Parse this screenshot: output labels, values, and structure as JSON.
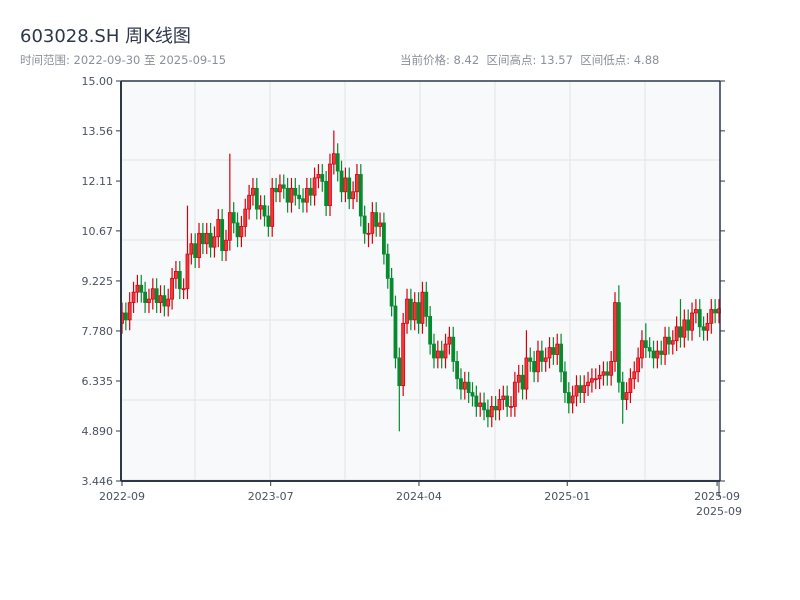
{
  "header": {
    "title": "603028.SH 周K线图",
    "range_label": "时间范围: 2022-09-30 至 2025-09-15",
    "stats_label": "当前价格: 8.42  区间高点: 13.57  区间低点: 4.88"
  },
  "chart_data": {
    "type": "candlestick",
    "start_date": "2022-09-30",
    "end_date": "2025-09-15",
    "current_price": 8.42,
    "range_high": 13.57,
    "range_low": 4.88,
    "ylim": [
      3.446,
      15.0
    ],
    "y_ticks": [
      "15.00",
      "13.56",
      "12.11",
      "10.67",
      "9.225",
      "7.780",
      "6.335",
      "4.890",
      "3.446"
    ],
    "x_ticks": [
      {
        "label": "2022-09",
        "week": 0
      },
      {
        "label": "2023-07",
        "week": 38.6
      },
      {
        "label": "2024-04",
        "week": 77.1
      },
      {
        "label": "2025-01",
        "week": 115.6
      },
      {
        "label": "2025-09",
        "week": 154.5
      },
      {
        "label": "2025-09",
        "week": 155
      }
    ],
    "grid": true,
    "colors": {
      "up": "#d7000f",
      "up_fill": "#f03a3a",
      "down": "#078a2e",
      "background": "#f7f9fb",
      "grid": "#e2e5ea",
      "axis": "#2d3748"
    },
    "open": [
      8.0,
      8.3,
      8.1,
      8.6,
      8.9,
      9.1,
      8.9,
      8.6,
      8.7,
      9.0,
      8.6,
      8.8,
      8.5,
      8.7,
      9.3,
      9.5,
      9.0,
      9.0,
      10.0,
      10.3,
      9.9,
      10.6,
      10.3,
      10.6,
      10.2,
      10.5,
      11.0,
      10.1,
      10.4,
      11.2,
      10.9,
      10.5,
      10.8,
      11.3,
      11.7,
      11.9,
      11.3,
      11.4,
      11.1,
      10.8,
      11.9,
      11.8,
      12.0,
      11.9,
      11.5,
      11.9,
      11.7,
      11.6,
      11.5,
      11.9,
      11.7,
      12.2,
      12.3,
      12.1,
      11.4,
      12.6,
      12.9,
      12.4,
      11.8,
      12.2,
      11.6,
      11.8,
      12.3,
      11.1,
      10.6,
      10.6,
      11.2,
      10.8,
      10.9,
      10.0,
      9.3,
      8.5,
      7.0,
      6.2,
      8.0,
      8.7,
      8.1,
      8.6,
      8.0,
      8.9,
      8.2,
      7.4,
      7.0,
      7.2,
      7.0,
      7.4,
      7.6,
      6.9,
      6.4,
      6.1,
      6.3,
      6.0,
      5.9,
      5.6,
      5.7,
      5.5,
      5.3,
      5.6,
      5.5,
      5.8,
      5.9,
      5.6,
      5.6,
      6.3,
      6.5,
      6.1,
      7.0,
      6.9,
      6.6,
      7.2,
      6.9,
      7.0,
      7.3,
      7.1,
      7.4,
      6.6,
      6.0,
      5.7,
      5.9,
      6.2,
      6.0,
      6.2,
      6.3,
      6.4,
      6.4,
      6.5,
      6.6,
      6.5,
      6.9,
      8.6,
      6.3,
      5.8,
      6.0,
      6.4,
      6.6,
      7.0,
      7.5,
      7.3,
      7.2,
      7.0,
      7.2,
      7.1,
      7.6,
      7.4,
      7.5,
      7.9,
      7.6,
      8.1,
      7.8,
      8.3,
      8.4,
      7.9,
      7.8,
      8.0,
      8.4,
      8.3
    ],
    "high": [
      8.6,
      8.6,
      8.9,
      9.2,
      9.4,
      9.4,
      9.2,
      9.0,
      9.3,
      9.3,
      9.1,
      9.1,
      9.0,
      9.6,
      9.8,
      9.8,
      9.3,
      11.4,
      10.6,
      10.6,
      10.9,
      10.9,
      10.9,
      10.9,
      10.8,
      11.3,
      11.3,
      10.7,
      12.9,
      11.5,
      11.2,
      11.1,
      11.6,
      12.0,
      12.2,
      12.2,
      11.7,
      11.7,
      11.4,
      12.2,
      12.2,
      12.3,
      12.3,
      12.2,
      12.2,
      12.2,
      12.0,
      11.9,
      12.2,
      12.2,
      12.5,
      12.6,
      12.6,
      12.4,
      12.9,
      13.57,
      13.2,
      12.7,
      12.5,
      12.5,
      12.1,
      12.6,
      12.6,
      11.4,
      10.9,
      11.5,
      11.5,
      11.2,
      11.2,
      10.3,
      9.6,
      8.8,
      7.3,
      8.3,
      9.0,
      9.0,
      8.9,
      8.9,
      9.2,
      9.2,
      8.5,
      7.7,
      7.5,
      7.5,
      7.7,
      7.9,
      7.9,
      7.2,
      6.7,
      6.6,
      6.6,
      6.3,
      6.2,
      6.0,
      6.0,
      5.8,
      5.9,
      5.9,
      6.1,
      6.2,
      6.2,
      5.9,
      6.6,
      6.8,
      6.8,
      7.8,
      7.3,
      7.2,
      7.5,
      7.5,
      7.3,
      7.6,
      7.6,
      7.7,
      7.7,
      6.9,
      6.3,
      6.2,
      6.5,
      6.5,
      6.5,
      6.6,
      6.7,
      6.7,
      6.8,
      6.9,
      6.9,
      7.2,
      8.9,
      9.1,
      6.6,
      6.3,
      6.7,
      6.9,
      7.3,
      7.8,
      8.0,
      7.6,
      7.5,
      7.5,
      7.5,
      7.9,
      7.9,
      7.8,
      8.2,
      8.7,
      8.4,
      8.4,
      8.6,
      8.7,
      8.7,
      8.2,
      8.3,
      8.7,
      8.7,
      8.7
    ],
    "low": [
      7.7,
      7.8,
      7.8,
      8.3,
      8.6,
      8.6,
      8.3,
      8.3,
      8.4,
      8.3,
      8.3,
      8.2,
      8.2,
      8.4,
      9.0,
      8.7,
      8.7,
      8.7,
      9.7,
      9.6,
      9.6,
      10.0,
      10.0,
      9.9,
      9.9,
      10.2,
      9.8,
      9.8,
      10.1,
      10.6,
      10.2,
      10.2,
      10.5,
      11.0,
      11.4,
      11.0,
      11.0,
      10.8,
      10.5,
      10.5,
      11.5,
      11.5,
      11.6,
      11.2,
      11.2,
      11.4,
      11.3,
      11.2,
      11.2,
      11.4,
      11.4,
      11.9,
      11.8,
      11.1,
      11.1,
      12.3,
      12.1,
      11.5,
      11.5,
      11.3,
      11.3,
      11.5,
      10.8,
      10.3,
      10.2,
      10.3,
      10.5,
      10.5,
      9.7,
      9.0,
      8.2,
      6.7,
      4.88,
      5.9,
      7.7,
      7.8,
      7.8,
      7.7,
      7.7,
      7.9,
      7.1,
      6.7,
      6.7,
      6.7,
      6.7,
      7.1,
      6.6,
      6.1,
      5.8,
      5.8,
      5.7,
      5.6,
      5.3,
      5.3,
      5.2,
      5.0,
      5.0,
      5.2,
      5.2,
      5.5,
      5.3,
      5.3,
      5.3,
      6.0,
      5.8,
      5.8,
      6.6,
      6.3,
      6.3,
      6.6,
      6.6,
      6.7,
      6.8,
      6.8,
      6.3,
      5.7,
      5.4,
      5.4,
      5.6,
      5.7,
      5.7,
      5.9,
      6.0,
      6.1,
      6.1,
      6.2,
      6.2,
      6.2,
      6.6,
      6.0,
      5.1,
      5.5,
      5.7,
      6.1,
      6.3,
      6.7,
      7.0,
      7.0,
      6.7,
      6.7,
      6.8,
      6.8,
      7.1,
      7.1,
      7.2,
      7.3,
      7.3,
      7.5,
      7.5,
      8.0,
      7.6,
      7.5,
      7.5,
      7.7,
      8.0,
      8.0
    ],
    "close": [
      8.3,
      8.1,
      8.6,
      8.9,
      9.1,
      8.9,
      8.6,
      8.7,
      9.0,
      8.6,
      8.8,
      8.5,
      8.7,
      9.3,
      9.5,
      9.0,
      9.0,
      10.0,
      10.3,
      9.9,
      10.6,
      10.3,
      10.6,
      10.2,
      10.5,
      11.0,
      10.1,
      10.4,
      11.2,
      10.9,
      10.5,
      10.8,
      11.3,
      11.7,
      11.9,
      11.3,
      11.4,
      11.1,
      10.8,
      11.9,
      11.8,
      12.0,
      11.9,
      11.5,
      11.9,
      11.7,
      11.6,
      11.5,
      11.9,
      11.7,
      12.2,
      12.3,
      12.1,
      11.4,
      12.6,
      12.9,
      12.4,
      11.8,
      12.2,
      11.6,
      11.8,
      12.3,
      11.1,
      10.6,
      10.6,
      11.2,
      10.8,
      10.9,
      10.0,
      9.3,
      8.5,
      7.0,
      6.2,
      8.0,
      8.7,
      8.1,
      8.6,
      8.0,
      8.9,
      8.2,
      7.4,
      7.0,
      7.2,
      7.0,
      7.4,
      7.6,
      6.9,
      6.4,
      6.1,
      6.3,
      6.0,
      5.9,
      5.6,
      5.7,
      5.5,
      5.3,
      5.6,
      5.5,
      5.8,
      5.9,
      5.6,
      5.6,
      6.3,
      6.5,
      6.1,
      7.0,
      6.9,
      6.6,
      7.2,
      6.9,
      7.0,
      7.3,
      7.1,
      7.4,
      6.6,
      6.0,
      5.7,
      5.9,
      6.2,
      6.0,
      6.2,
      6.3,
      6.4,
      6.4,
      6.5,
      6.6,
      6.5,
      6.9,
      8.6,
      6.3,
      5.8,
      6.0,
      6.4,
      6.6,
      7.0,
      7.5,
      7.3,
      7.2,
      7.0,
      7.2,
      7.1,
      7.6,
      7.4,
      7.5,
      7.9,
      7.6,
      8.1,
      7.8,
      8.3,
      8.4,
      7.9,
      7.8,
      8.0,
      8.4,
      8.3,
      8.42
    ]
  }
}
